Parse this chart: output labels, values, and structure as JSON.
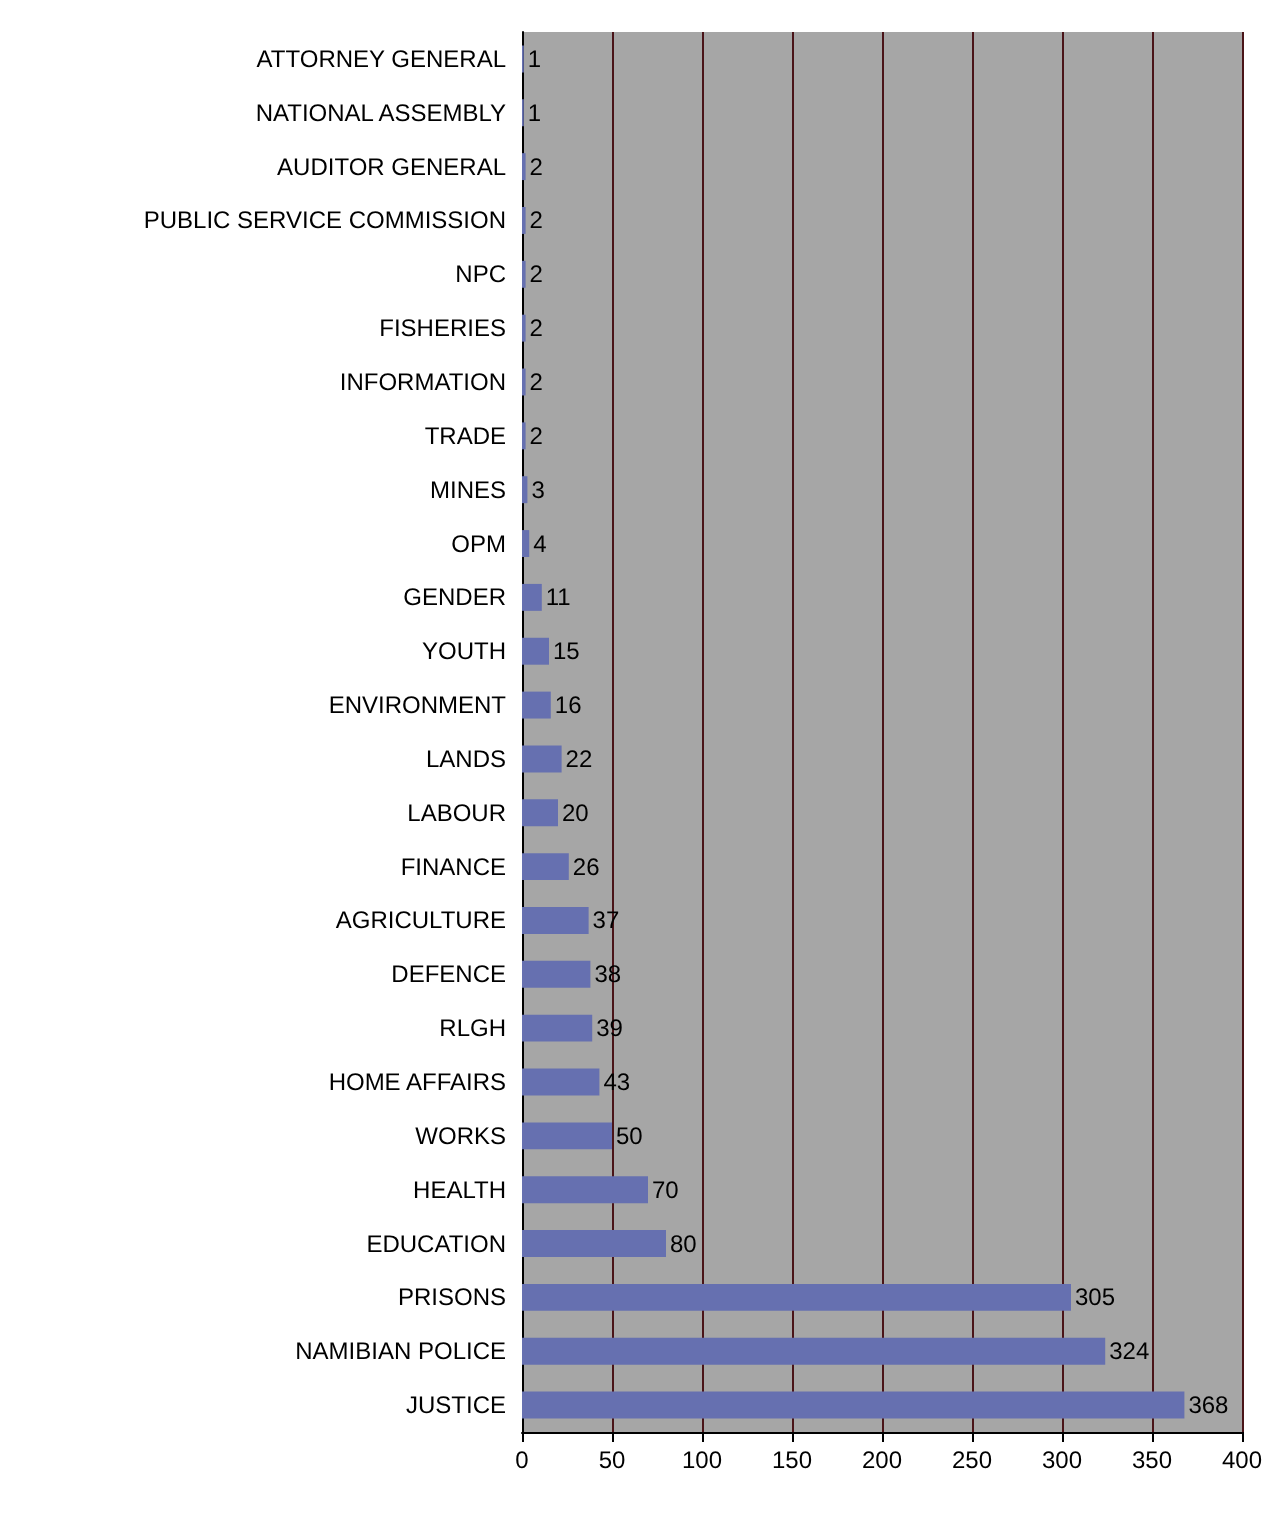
{
  "chart_data": {
    "type": "bar",
    "orientation": "horizontal",
    "categories": [
      "ATTORNEY GENERAL",
      "NATIONAL ASSEMBLY",
      "AUDITOR GENERAL",
      "PUBLIC SERVICE COMMISSION",
      "NPC",
      "FISHERIES",
      "INFORMATION",
      "TRADE",
      "MINES",
      "OPM",
      "GENDER",
      "YOUTH",
      "ENVIRONMENT",
      "LANDS",
      "LABOUR",
      "FINANCE",
      "AGRICULTURE",
      "DEFENCE",
      "RLGH",
      "HOME AFFAIRS",
      "WORKS",
      "HEALTH",
      "EDUCATION",
      "PRISONS",
      "NAMIBIAN POLICE",
      "JUSTICE"
    ],
    "values": [
      1,
      1,
      2,
      2,
      2,
      2,
      2,
      2,
      3,
      4,
      11,
      15,
      16,
      22,
      20,
      26,
      37,
      38,
      39,
      43,
      50,
      70,
      80,
      305,
      324,
      368
    ],
    "color": "#6670b0",
    "xlim": [
      0,
      400
    ],
    "xticks": [
      0,
      50,
      100,
      150,
      200,
      250,
      300,
      350,
      400
    ],
    "grid": "x",
    "data_labels": true
  }
}
